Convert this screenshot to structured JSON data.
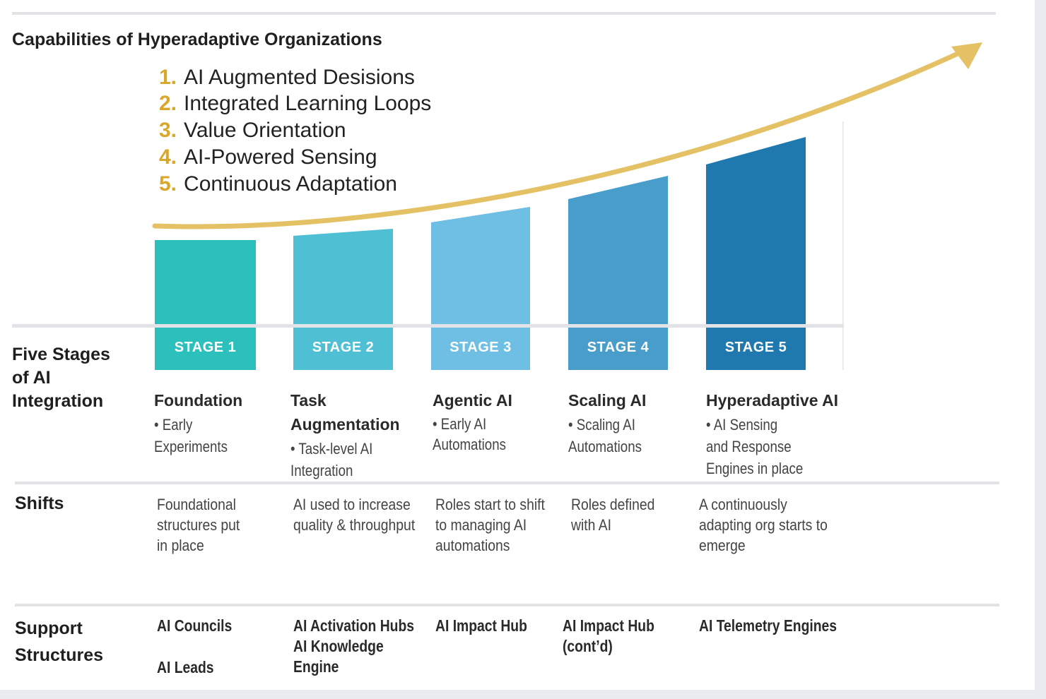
{
  "title": "Capabilities of Hyperadaptive Organizations",
  "capabilities": [
    {
      "num": "1.",
      "text": "AI Augmented Desisions"
    },
    {
      "num": "2.",
      "text": "Integrated Learning Loops"
    },
    {
      "num": "3.",
      "text": "Value Orientation"
    },
    {
      "num": "4.",
      "text": "AI-Powered Sensing"
    },
    {
      "num": "5.",
      "text": "Continuous Adaptation"
    }
  ],
  "row_headers": {
    "stages": "Five Stages\nof AI\nIntegration",
    "shifts": "Shifts",
    "support": "Support\nStructures"
  },
  "stages": [
    {
      "label": "STAGE 1",
      "color": "#2cc0bc",
      "name": "Foundation",
      "desc": "• Early\n  Experiments",
      "shift": "Foundational\nstructures put\nin place",
      "support_a": "AI Councils",
      "support_b": "AI Leads"
    },
    {
      "label": "STAGE 2",
      "color": "#4fbfd3",
      "name": "Task\nAugmentation",
      "desc": "• Task-level AI\nIntegration",
      "shift": "AI used to increase\nquality & throughput",
      "support_a": "AI Activation Hubs\nAI Knowledge\nEngine",
      "support_b": ""
    },
    {
      "label": "STAGE 3",
      "color": "#6ebfe3",
      "name": "Agentic AI",
      "desc": "• Early AI\nAutomations",
      "shift": "Roles start to shift\nto managing AI\nautomations",
      "support_a": "AI Impact Hub",
      "support_b": ""
    },
    {
      "label": "STAGE 4",
      "color": "#489dcb",
      "name": "Scaling AI",
      "desc": "• Scaling AI\n  Automations",
      "shift": "Roles defined\nwith AI",
      "support_a": "AI Impact Hub\n(cont’d)",
      "support_b": ""
    },
    {
      "label": "STAGE 5",
      "color": "#1f78ae",
      "name": "Hyperadaptive AI",
      "desc": "• AI Sensing\n  and Response\n  Engines in place",
      "shift": "A continuously\nadapting org starts to\nemerge",
      "support_a": "AI Telemetry Engines",
      "support_b": ""
    }
  ],
  "arrow_color": "#e3c164"
}
